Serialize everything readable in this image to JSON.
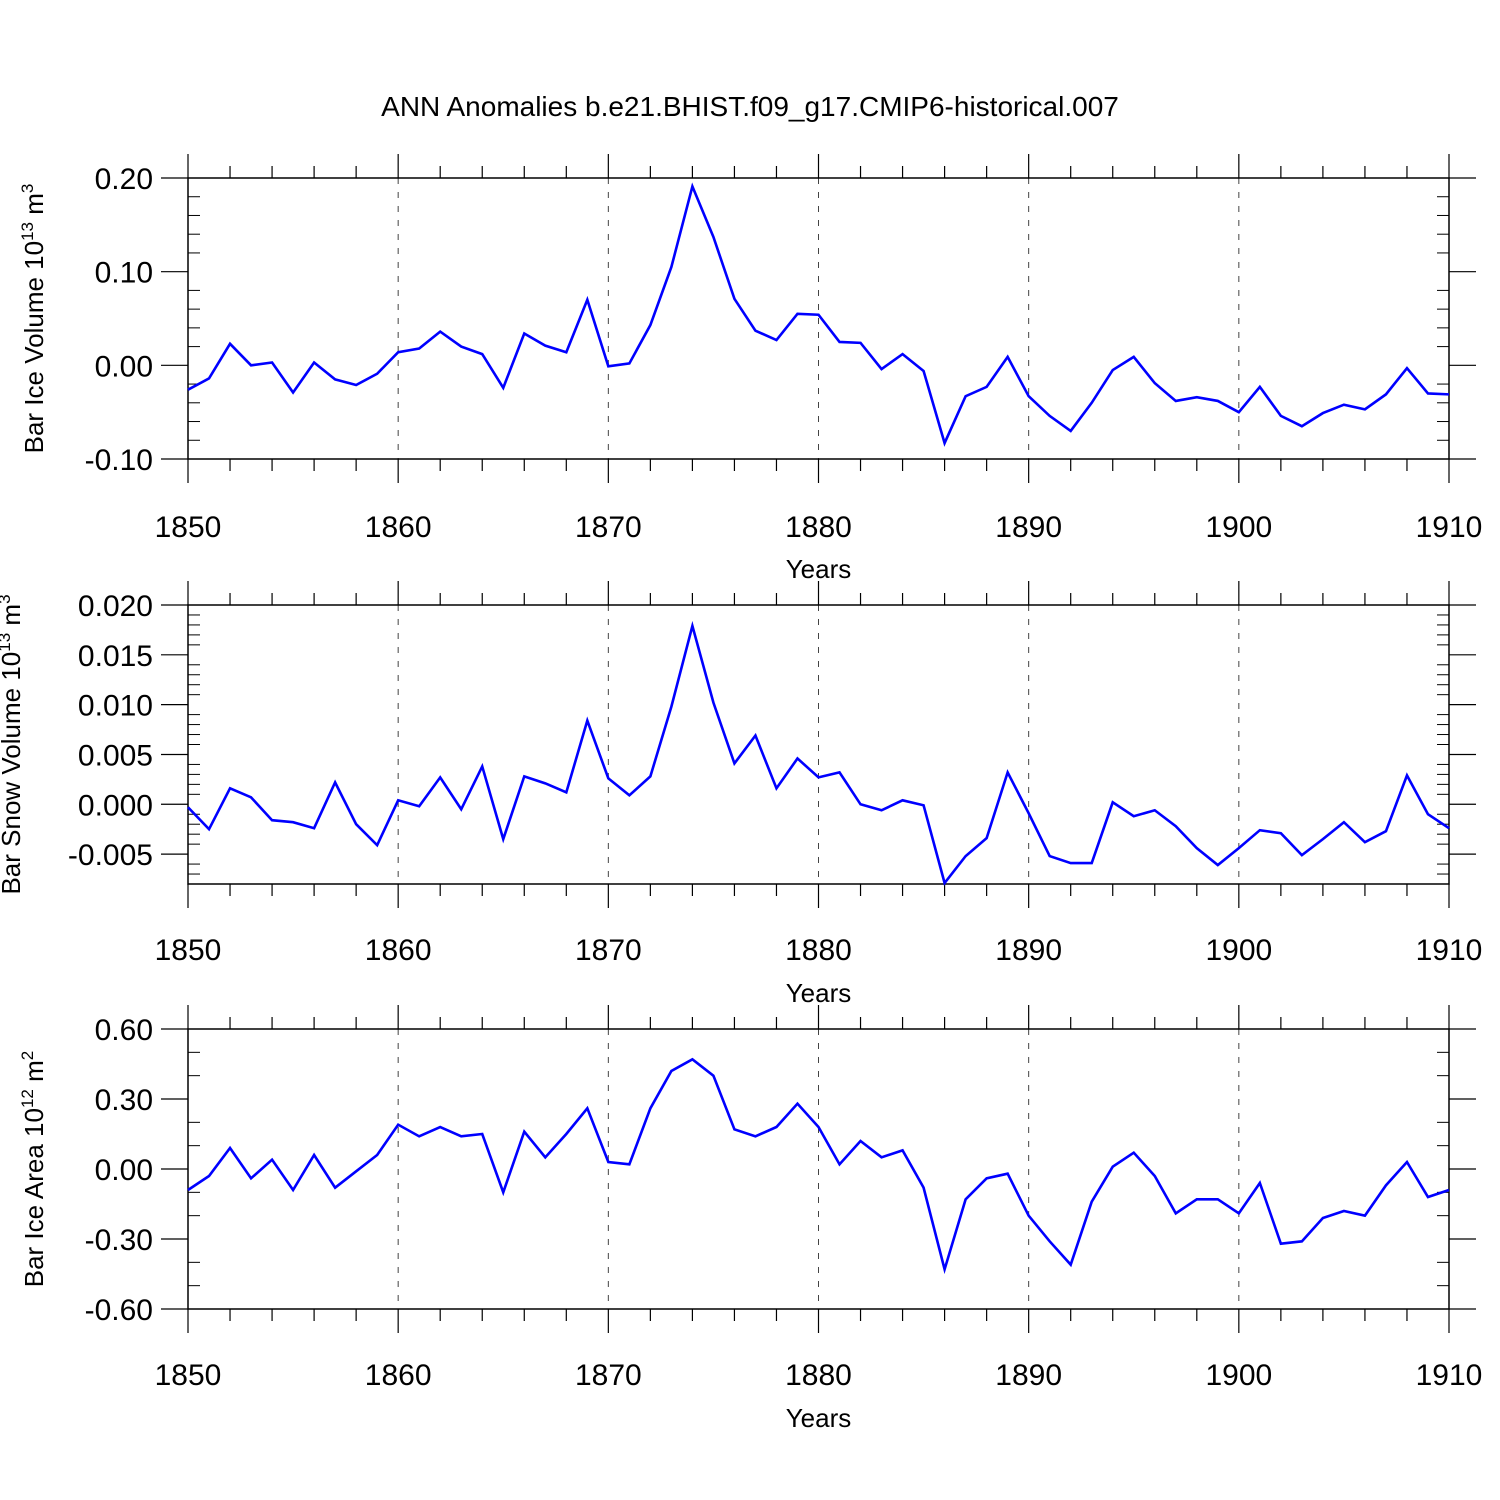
{
  "figure": {
    "title": "ANN Anomalies b.e21.BHIST.f09_g17.CMIP6-historical.007",
    "line_color": "#0000ff",
    "grid_color": "#444444"
  },
  "chart_data": [
    {
      "type": "line",
      "ylabel": "Bar Ice Volume 10",
      "ylabel_exp": "13",
      "ylabel_unit": " m",
      "ylabel_unit_exp": "3",
      "xlabel": "Years",
      "xlim": [
        1850,
        1910
      ],
      "ylim": [
        -0.1,
        0.2
      ],
      "yticks": [
        -0.1,
        0.0,
        0.1,
        0.2
      ],
      "ytick_labels": [
        "-0.10",
        "0.00",
        "0.10",
        "0.20"
      ],
      "xticks": [
        1850,
        1860,
        1870,
        1880,
        1890,
        1900,
        1910
      ],
      "xtick_labels": [
        "1850",
        "1860",
        "1870",
        "1880",
        "1890",
        "1900",
        "1910"
      ],
      "x_start": 1850,
      "values": [
        -0.026,
        -0.014,
        0.023,
        0.0,
        0.003,
        -0.029,
        0.003,
        -0.015,
        -0.021,
        -0.009,
        0.014,
        0.018,
        0.036,
        0.02,
        0.012,
        -0.024,
        0.034,
        0.021,
        0.014,
        0.07,
        -0.001,
        0.002,
        0.043,
        0.105,
        0.191,
        0.137,
        0.071,
        0.037,
        0.027,
        0.055,
        0.054,
        0.025,
        0.024,
        -0.004,
        0.012,
        -0.006,
        -0.083,
        -0.033,
        -0.023,
        0.009,
        -0.033,
        -0.054,
        -0.07,
        -0.04,
        -0.005,
        0.009,
        -0.019,
        -0.038,
        -0.034,
        -0.038,
        -0.05,
        -0.023,
        -0.054,
        -0.065,
        -0.051,
        -0.042,
        -0.047,
        -0.031,
        -0.003,
        -0.03,
        -0.031
      ]
    },
    {
      "type": "line",
      "ylabel": "Bar Snow Volume 10",
      "ylabel_exp": "13",
      "ylabel_unit": " m",
      "ylabel_unit_exp": "3",
      "xlabel": "Years",
      "xlim": [
        1850,
        1910
      ],
      "ylim": [
        -0.008,
        0.02
      ],
      "yticks": [
        -0.005,
        0.0,
        0.005,
        0.01,
        0.015,
        0.02
      ],
      "ytick_labels": [
        "-0.005",
        "0.000",
        "0.005",
        "0.010",
        "0.015",
        "0.020"
      ],
      "xticks": [
        1850,
        1860,
        1870,
        1880,
        1890,
        1900,
        1910
      ],
      "xtick_labels": [
        "1850",
        "1860",
        "1870",
        "1880",
        "1890",
        "1900",
        "1910"
      ],
      "x_start": 1850,
      "values": [
        -0.0003,
        -0.0025,
        0.0016,
        0.0007,
        -0.0016,
        -0.0018,
        -0.0024,
        0.0022,
        -0.002,
        -0.0041,
        0.0004,
        -0.0002,
        0.0027,
        -0.0005,
        0.0038,
        -0.0035,
        0.0028,
        0.0021,
        0.0012,
        0.0084,
        0.0026,
        0.0009,
        0.0028,
        0.0098,
        0.0179,
        0.0102,
        0.0041,
        0.0069,
        0.0016,
        0.0046,
        0.0027,
        0.0032,
        0.0,
        -0.0006,
        0.0004,
        -0.0001,
        -0.0079,
        -0.0052,
        -0.0034,
        0.0032,
        -0.0009,
        -0.0052,
        -0.0059,
        -0.0059,
        0.0002,
        -0.0012,
        -0.0006,
        -0.0022,
        -0.0044,
        -0.0061,
        -0.0044,
        -0.0026,
        -0.0029,
        -0.0051,
        -0.0035,
        -0.0018,
        -0.0038,
        -0.0027,
        0.0029,
        -0.001,
        -0.0024
      ]
    },
    {
      "type": "line",
      "ylabel": "Bar Ice Area 10",
      "ylabel_exp": "12",
      "ylabel_unit": " m",
      "ylabel_unit_exp": "2",
      "xlabel": "Years",
      "xlim": [
        1850,
        1910
      ],
      "ylim": [
        -0.6,
        0.6
      ],
      "yticks": [
        -0.6,
        -0.3,
        0.0,
        0.3,
        0.6
      ],
      "ytick_labels": [
        "-0.60",
        "-0.30",
        "0.00",
        "0.30",
        "0.60"
      ],
      "xticks": [
        1850,
        1860,
        1870,
        1880,
        1890,
        1900,
        1910
      ],
      "xtick_labels": [
        "1850",
        "1860",
        "1870",
        "1880",
        "1890",
        "1900",
        "1910"
      ],
      "x_start": 1850,
      "values": [
        -0.09,
        -0.03,
        0.09,
        -0.04,
        0.04,
        -0.09,
        0.06,
        -0.08,
        -0.01,
        0.06,
        0.19,
        0.14,
        0.18,
        0.14,
        0.15,
        -0.1,
        0.16,
        0.05,
        0.15,
        0.26,
        0.03,
        0.02,
        0.26,
        0.42,
        0.47,
        0.4,
        0.17,
        0.14,
        0.18,
        0.28,
        0.18,
        0.02,
        0.12,
        0.05,
        0.08,
        -0.08,
        -0.43,
        -0.13,
        -0.04,
        -0.02,
        -0.2,
        -0.31,
        -0.41,
        -0.14,
        0.01,
        0.07,
        -0.03,
        -0.19,
        -0.13,
        -0.13,
        -0.19,
        -0.06,
        -0.32,
        -0.31,
        -0.21,
        -0.18,
        -0.2,
        -0.07,
        0.03,
        -0.12,
        -0.09
      ]
    }
  ]
}
